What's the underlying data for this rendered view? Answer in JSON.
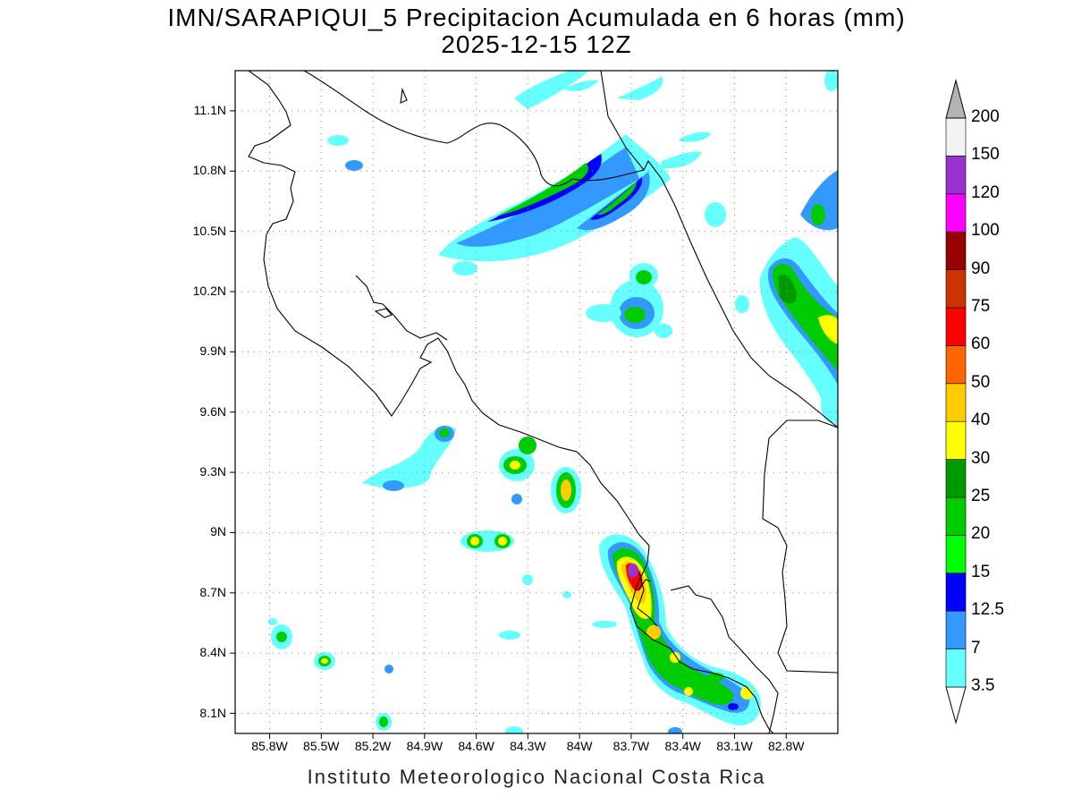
{
  "header": {
    "title_line1": "IMN/SARAPIQUI_5 Precipitacion Acumulada en 6 horas (mm)",
    "title_line2": "2025-12-15 12Z"
  },
  "footer": {
    "credit": "Instituto Meteorologico Nacional Costa Rica"
  },
  "map": {
    "lon_range": [
      -86.0,
      -82.5
    ],
    "lat_range": [
      8.0,
      11.3
    ],
    "grid": true,
    "x_ticks": [
      {
        "value": -85.8,
        "label": "85.8W"
      },
      {
        "value": -85.5,
        "label": "85.5W"
      },
      {
        "value": -85.2,
        "label": "85.2W"
      },
      {
        "value": -84.9,
        "label": "84.9W"
      },
      {
        "value": -84.6,
        "label": "84.6W"
      },
      {
        "value": -84.3,
        "label": "84.3W"
      },
      {
        "value": -84.0,
        "label": "84W"
      },
      {
        "value": -83.7,
        "label": "83.7W"
      },
      {
        "value": -83.4,
        "label": "83.4W"
      },
      {
        "value": -83.1,
        "label": "83.1W"
      },
      {
        "value": -82.8,
        "label": "82.8W"
      }
    ],
    "y_ticks": [
      {
        "value": 11.1,
        "label": "11.1N"
      },
      {
        "value": 10.8,
        "label": "10.8N"
      },
      {
        "value": 10.5,
        "label": "10.5N"
      },
      {
        "value": 10.2,
        "label": "10.2N"
      },
      {
        "value": 9.9,
        "label": "9.9N"
      },
      {
        "value": 9.6,
        "label": "9.6N"
      },
      {
        "value": 9.3,
        "label": "9.3N"
      },
      {
        "value": 9.0,
        "label": "9N"
      },
      {
        "value": 8.7,
        "label": "8.7N"
      },
      {
        "value": 8.4,
        "label": "8.4N"
      },
      {
        "value": 8.1,
        "label": "8.1N"
      }
    ]
  },
  "colorbar": {
    "levels": [
      "3.5",
      "7",
      "12.5",
      "15",
      "20",
      "25",
      "30",
      "40",
      "50",
      "60",
      "75",
      "90",
      "100",
      "120",
      "150",
      "200"
    ],
    "colors": [
      "#66ffff",
      "#3399ff",
      "#0000ff",
      "#00ff00",
      "#00cc00",
      "#009900",
      "#ffff00",
      "#ffcc00",
      "#ff6600",
      "#ff0000",
      "#cc3300",
      "#990000",
      "#ff00ff",
      "#9933cc",
      "#f2f2f2",
      "#b3b3b3"
    ]
  },
  "legend_colors": {
    "c3_5": "#66ffff",
    "c7": "#3399ff",
    "c12_5": "#0000ff",
    "c15": "#00ff00",
    "c20": "#00cc00",
    "c25": "#009900",
    "c30": "#ffff00",
    "c40": "#ffcc00",
    "c50": "#ff6600",
    "c60": "#ff0000",
    "c75": "#cc3300",
    "c90": "#990000",
    "c100": "#ff00ff",
    "c120": "#9933cc",
    "c150": "#f2f2f2",
    "c200": "#b3b3b3"
  }
}
